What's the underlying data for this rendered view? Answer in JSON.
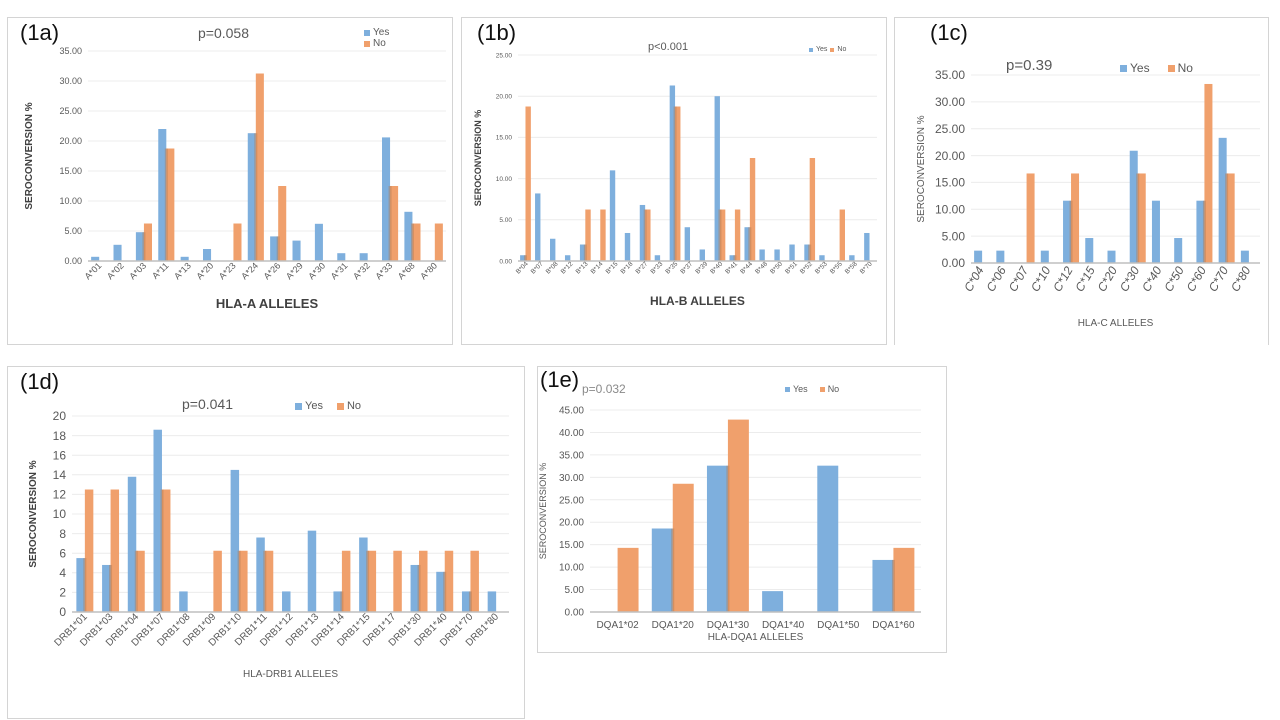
{
  "colors": {
    "yes": "#7eafdd",
    "no": "#f0a06c",
    "grid": "#ececec",
    "axis": "#bfbfbf",
    "tick": "#595959"
  },
  "chart_data": [
    {
      "id": "1a",
      "type": "bar",
      "panel_label": "(1a)",
      "title": "p=0.058",
      "xlabel": "HLA-A ALLELES",
      "ylabel": "SEROCONVERSION %",
      "ylim": [
        0,
        35
      ],
      "yticks": [
        "0.00",
        "5.00",
        "10.00",
        "15.00",
        "20.00",
        "25.00",
        "30.00",
        "35.00"
      ],
      "grid": true,
      "legend": {
        "placement": "top-right",
        "entries": [
          "Yes",
          "No"
        ]
      },
      "categories": [
        "A*01",
        "A*02",
        "A*03",
        "A*11",
        "A*13",
        "A*20",
        "A*23",
        "A*24",
        "A*26",
        "A*29",
        "A*30",
        "A*31",
        "A*32",
        "A*33",
        "A*68",
        "A*80"
      ],
      "series": [
        {
          "name": "Yes",
          "values": [
            0.7,
            2.7,
            4.8,
            22.0,
            0.7,
            2.0,
            0,
            21.3,
            4.1,
            3.4,
            6.2,
            1.3,
            1.3,
            20.6,
            8.2,
            0
          ]
        },
        {
          "name": "No",
          "values": [
            0,
            0,
            6.25,
            18.75,
            0,
            0,
            6.25,
            31.25,
            12.5,
            0,
            0,
            0,
            0,
            12.5,
            6.25,
            6.25
          ]
        }
      ]
    },
    {
      "id": "1b",
      "type": "bar",
      "panel_label": "(1b)",
      "title": "p<0.001",
      "xlabel": "HLA-B ALLELES",
      "ylabel": "SEROCONVERSION %",
      "ylim": [
        0,
        25
      ],
      "yticks": [
        "0.00",
        "5.00",
        "10.00",
        "15.00",
        "20.00",
        "25.00"
      ],
      "grid": true,
      "legend": {
        "placement": "top-right",
        "entries": [
          "Yes",
          "No"
        ]
      },
      "categories": [
        "B*04",
        "B*07",
        "B*08",
        "B*12",
        "B*13",
        "B*14",
        "B*15",
        "B*18",
        "B*27",
        "B*33",
        "B*35",
        "B*37",
        "B*39",
        "B*40",
        "B*41",
        "B*44",
        "B*48",
        "B*50",
        "B*51",
        "B*52",
        "B*53",
        "B*55",
        "B*58",
        "B*70"
      ],
      "series": [
        {
          "name": "Yes",
          "values": [
            0.7,
            8.2,
            2.7,
            0.7,
            2.0,
            0,
            11.0,
            3.4,
            6.8,
            0.7,
            21.3,
            4.1,
            1.4,
            20.0,
            0.7,
            4.1,
            1.4,
            1.4,
            2.0,
            2.0,
            0.7,
            0,
            0.7,
            3.4
          ]
        },
        {
          "name": "No",
          "values": [
            18.75,
            0,
            0,
            0,
            6.25,
            6.25,
            0,
            0,
            6.25,
            0,
            18.75,
            0,
            0,
            6.25,
            6.25,
            12.5,
            0,
            0,
            0,
            12.5,
            0,
            6.25,
            0,
            0
          ]
        }
      ]
    },
    {
      "id": "1c",
      "type": "bar",
      "panel_label": "(1c)",
      "title": "p=0.39",
      "xlabel": "HLA-C ALLELES",
      "ylabel": "SEROCONVERSION %",
      "ylim": [
        0,
        35
      ],
      "yticks": [
        "0.00",
        "5.00",
        "10.00",
        "15.00",
        "20.00",
        "25.00",
        "30.00",
        "35.00"
      ],
      "grid": true,
      "legend": {
        "placement": "top-center",
        "entries": [
          "Yes",
          "No"
        ]
      },
      "categories": [
        "C*04",
        "C*06",
        "C*07",
        "C*10",
        "C*12",
        "C*15",
        "C*20",
        "C*30",
        "C*40",
        "C*50",
        "C*60",
        "C*70",
        "C*80"
      ],
      "series": [
        {
          "name": "Yes",
          "values": [
            2.3,
            2.3,
            0,
            2.3,
            11.6,
            4.65,
            2.3,
            20.9,
            11.6,
            4.65,
            11.6,
            23.3,
            2.3
          ]
        },
        {
          "name": "No",
          "values": [
            0,
            0,
            16.67,
            0,
            16.67,
            0,
            0,
            16.67,
            0,
            0,
            33.33,
            16.67,
            0
          ]
        }
      ]
    },
    {
      "id": "1d",
      "type": "bar",
      "panel_label": "(1d)",
      "title": "p=0.041",
      "xlabel": "HLA-DRB1 ALLELES",
      "ylabel": "SEROCONVERSION %",
      "ylim": [
        0,
        20
      ],
      "yticks": [
        "0",
        "2",
        "4",
        "6",
        "8",
        "10",
        "12",
        "14",
        "16",
        "18",
        "20"
      ],
      "grid": true,
      "legend": {
        "placement": "top-center",
        "entries": [
          "Yes",
          "No"
        ]
      },
      "categories": [
        "DRB1*01",
        "DRB1*03",
        "DRB1*04",
        "DRB1*07",
        "DRB1*08",
        "DRB1*09",
        "DRB1*10",
        "DRB1*11",
        "DRB1*12",
        "DRB1*13",
        "DRB1*14",
        "DRB1*15",
        "DRB1*17",
        "DRB1*30",
        "DRB1*40",
        "DRB1*70",
        "DRB1*80"
      ],
      "series": [
        {
          "name": "Yes",
          "values": [
            5.5,
            4.8,
            13.8,
            18.6,
            2.1,
            0,
            14.5,
            7.6,
            2.1,
            8.3,
            2.1,
            7.6,
            0,
            4.8,
            4.1,
            2.1,
            2.1
          ]
        },
        {
          "name": "No",
          "values": [
            12.5,
            12.5,
            6.25,
            12.5,
            0,
            6.25,
            6.25,
            6.25,
            0,
            0,
            6.25,
            6.25,
            6.25,
            6.25,
            6.25,
            6.25,
            0
          ]
        }
      ]
    },
    {
      "id": "1e",
      "type": "bar",
      "panel_label": "(1e)",
      "title": "p=0.032",
      "xlabel": "HLA-DQA1 ALLELES",
      "ylabel": "SEROCONVERSION %",
      "ylim": [
        0,
        45
      ],
      "yticks": [
        "0.00",
        "5.00",
        "10.00",
        "15.00",
        "20.00",
        "25.00",
        "30.00",
        "35.00",
        "40.00",
        "45.00"
      ],
      "grid": true,
      "legend": {
        "placement": "top-right",
        "entries": [
          "Yes",
          "No"
        ]
      },
      "categories": [
        "DQA1*02",
        "DQA1*20",
        "DQA1*30",
        "DQA1*40",
        "DQA1*50",
        "DQA1*60"
      ],
      "series": [
        {
          "name": "Yes",
          "values": [
            0,
            18.6,
            32.6,
            4.65,
            32.6,
            11.6
          ]
        },
        {
          "name": "No",
          "values": [
            14.29,
            28.57,
            42.86,
            0,
            0,
            14.29
          ]
        }
      ]
    }
  ]
}
